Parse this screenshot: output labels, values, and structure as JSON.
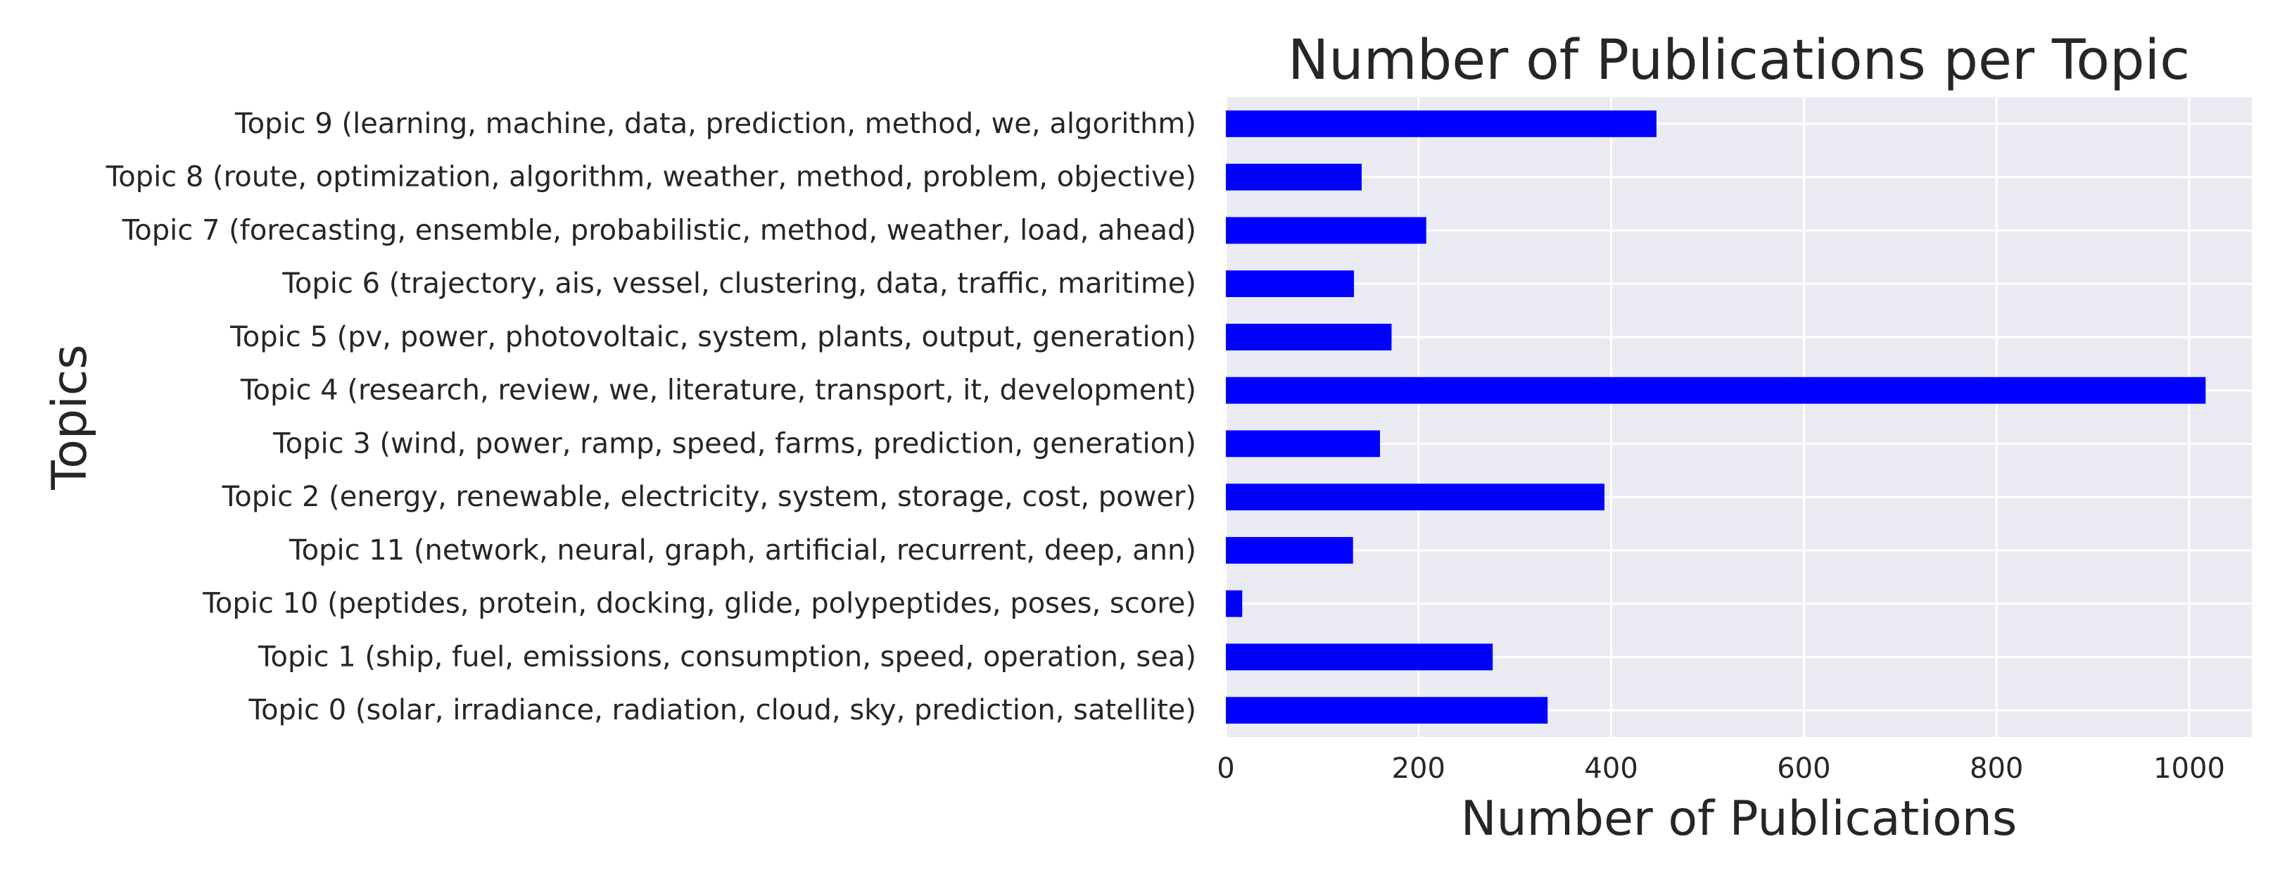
{
  "chart_data": {
    "type": "bar",
    "orientation": "horizontal",
    "title": "Number of Publications per Topic",
    "xlabel": "Number of Publications",
    "ylabel": "Topics",
    "categories": [
      "Topic 9 (learning, machine, data, prediction, method, we, algorithm)",
      "Topic 8 (route, optimization, algorithm, weather, method, problem, objective)",
      "Topic 7 (forecasting, ensemble, probabilistic, method, weather, load, ahead)",
      "Topic 6 (trajectory, ais, vessel, clustering, data, traffic, maritime)",
      "Topic 5 (pv, power, photovoltaic, system, plants, output, generation)",
      "Topic 4 (research, review, we, literature, transport, it, development)",
      "Topic 3 (wind, power, ramp, speed, farms, prediction, generation)",
      "Topic 2 (energy, renewable, electricity, system, storage, cost, power)",
      "Topic 11 (network, neural, graph, artificial, recurrent, deep, ann)",
      "Topic 10 (peptides, protein, docking, glide, polypeptides, poses, score)",
      "Topic 1 (ship, fuel, emissions, consumption, speed, operation, sea)",
      "Topic 0 (solar, irradiance, radiation, cloud, sky, prediction, satellite)"
    ],
    "values": [
      447,
      141,
      208,
      133,
      172,
      1017,
      160,
      393,
      132,
      17,
      277,
      334
    ],
    "xlim": [
      0,
      1065
    ],
    "xticks": [
      0,
      200,
      400,
      600,
      800,
      1000
    ],
    "grid": true,
    "bar_color": "#0000ff",
    "background_color": "#eaeaf2",
    "grid_color": "#ffffff",
    "legend": "none"
  }
}
